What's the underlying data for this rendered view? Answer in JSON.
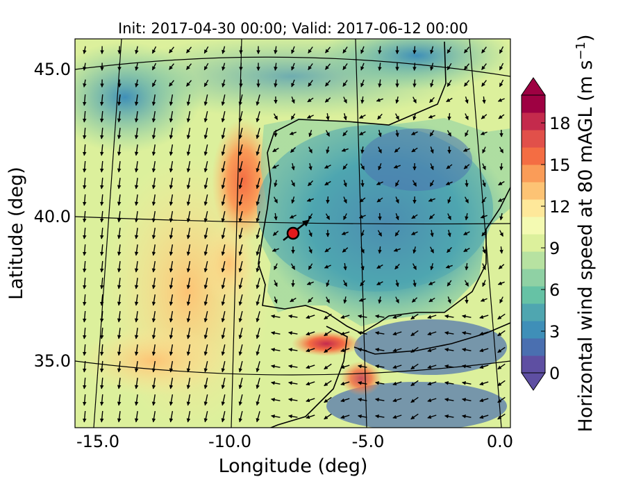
{
  "chart_data": {
    "type": "heatmap",
    "title": "Init: 2017-04-30 00:00; Valid: 2017-06-12 00:00",
    "xlabel": "Longitude (deg)",
    "ylabel": "Latitude (deg)",
    "xlim": [
      -16.0,
      0.4
    ],
    "ylim": [
      32.8,
      46.2
    ],
    "x_ticks": [
      -15.0,
      -10.0,
      -5.0,
      0.0
    ],
    "x_tick_labels": [
      "-15.0",
      "-10.0",
      "-5.0",
      "0.0"
    ],
    "y_ticks": [
      35.0,
      40.0,
      45.0
    ],
    "y_tick_labels": [
      "35.0",
      "40.0",
      "45.0"
    ],
    "colorbar": {
      "label_main": "Horizontal wind speed at 80 mAGL (m s",
      "label_exp": "−1",
      "label_close": ")",
      "range": [
        0,
        20
      ],
      "ticks": [
        0,
        3,
        6,
        9,
        12,
        15,
        18
      ],
      "tick_labels": [
        "0",
        "3",
        "6",
        "9",
        "12",
        "15",
        "18"
      ],
      "extend": "both",
      "colors": [
        "#5e4fa2",
        "#4a6fb0",
        "#3f8fb8",
        "#4fa6b0",
        "#66c2a5",
        "#8fd1a4",
        "#b7e2a1",
        "#dcf09c",
        "#f4fab2",
        "#fee89a",
        "#fdc374",
        "#fa9c58",
        "#f46d43",
        "#e1504a",
        "#c42a4c",
        "#9e0142"
      ]
    },
    "marker": {
      "lon": -7.6,
      "lat": 39.3,
      "color": "#e41a1c"
    },
    "colormap": "Spectral_r",
    "features": "wind speed field with wind vectors, coastlines, lat/lon grid lines"
  }
}
